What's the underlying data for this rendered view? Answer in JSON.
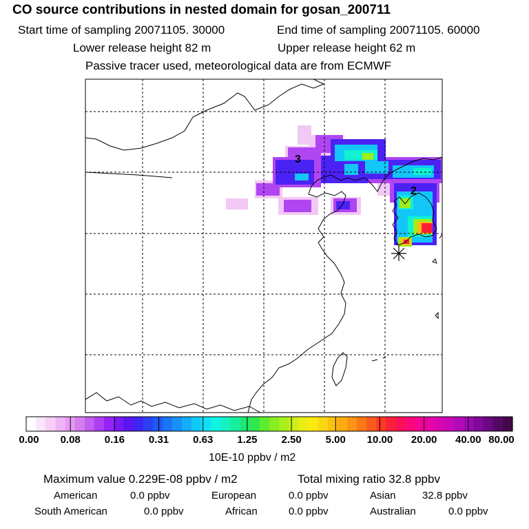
{
  "header": {
    "title": "CO  source contributions in nested domain for gosan_200711",
    "start": "Start time of sampling 20071105. 30000",
    "end": "End time of sampling 20071105. 60000",
    "lower": "Lower release height   82 m",
    "upper": "Upper release height   62 m",
    "note": "Passive tracer used, meteorological data are from ECMWF"
  },
  "map": {
    "labels": [
      "3",
      "2"
    ],
    "marker_icon": "asterisk-receptor-icon"
  },
  "colorbar": {
    "colors": [
      "#ffffff",
      "#fbe6fb",
      "#f6cef6",
      "#efb4f4",
      "#e59cf2",
      "#d57ef0",
      "#c25ef0",
      "#ad3ef3",
      "#9522f6",
      "#7a18f5",
      "#5a16f2",
      "#3f24f2",
      "#2d3ef4",
      "#1f58f4",
      "#1a74f6",
      "#1890f8",
      "#14acf8",
      "#10c8f6",
      "#0ee2f2",
      "#10f2e2",
      "#14f2c0",
      "#18ee9c",
      "#1ce874",
      "#30e84c",
      "#5cec30",
      "#86ee20",
      "#aaee1c",
      "#ccee16",
      "#e8ee12",
      "#fcea10",
      "#fcd810",
      "#fcc210",
      "#fcac12",
      "#fc9414",
      "#fc7818",
      "#fc5a1c",
      "#fc3a24",
      "#fc2038",
      "#fc1058",
      "#fc0878",
      "#f40494",
      "#e604a4",
      "#d806b0",
      "#c808b8",
      "#b20ab8",
      "#9a0aae",
      "#82089c",
      "#6a0880",
      "#540864",
      "#420848"
    ],
    "ticks": [
      "0.00",
      "0.08",
      "0.16",
      "0.31",
      "0.63",
      "1.25",
      "2.50",
      "5.00",
      "10.00",
      "20.00",
      "40.00",
      "80.00"
    ],
    "unit": "10E-10 ppbv / m2"
  },
  "summary": {
    "max": "Maximum value  0.229E-08 ppbv / m2",
    "mix": "Total mixing ratio       32.8 ppbv"
  },
  "regions": [
    {
      "name": "American",
      "value": "0.0 ppbv"
    },
    {
      "name": "European",
      "value": "0.0 ppbv"
    },
    {
      "name": "Asian",
      "value": "32.8 ppbv"
    },
    {
      "name": "South American",
      "value": "0.0 ppbv"
    },
    {
      "name": "African",
      "value": "0.0 ppbv"
    },
    {
      "name": "Australian",
      "value": "0.0 ppbv"
    }
  ]
}
